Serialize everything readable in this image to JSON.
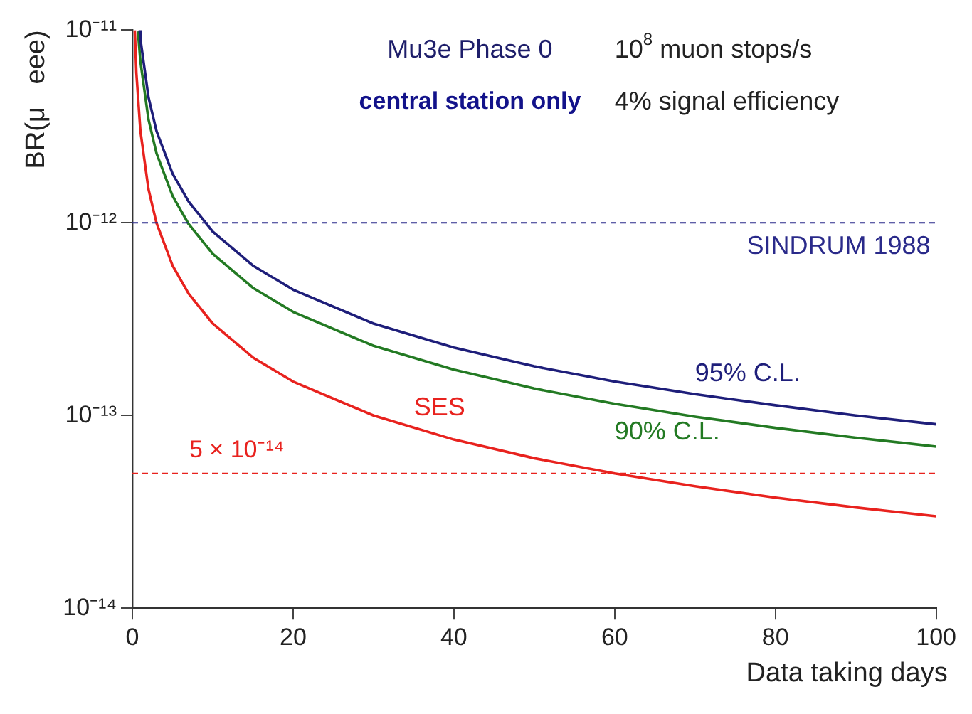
{
  "chart_data": {
    "type": "line",
    "xlabel": "Data taking days",
    "ylabel": "BR(μ   eee)",
    "log": "y",
    "grid": false,
    "legend": false,
    "marker": "none",
    "line_style": "solid",
    "xlim": [
      0,
      100
    ],
    "xticks": [
      0,
      20,
      40,
      60,
      80,
      100
    ],
    "ylim": [
      1e-14,
      1e-11
    ],
    "yticks": [
      {
        "value": 1e-14,
        "label": "10⁻¹⁴"
      },
      {
        "value": 1e-13,
        "label": "10⁻¹³"
      },
      {
        "value": 1e-12,
        "label": "10⁻¹²"
      },
      {
        "value": 1e-11,
        "label": "10⁻¹¹"
      }
    ],
    "series": [
      {
        "name": "95% C.L.",
        "color": "#1e1e7a",
        "x": [
          0.9,
          1,
          2,
          3,
          5,
          7,
          10,
          15,
          20,
          30,
          40,
          50,
          60,
          70,
          80,
          90,
          100
        ],
        "values": [
          1e-11,
          9e-12,
          4.5e-12,
          3e-12,
          1.8e-12,
          1.29e-12,
          9e-13,
          6e-13,
          4.5e-13,
          3e-13,
          2.25e-13,
          1.8e-13,
          1.5e-13,
          1.29e-13,
          1.13e-13,
          1e-13,
          9e-14
        ]
      },
      {
        "name": "90% C.L.",
        "color": "#237a23",
        "x": [
          0.7,
          1,
          2,
          3,
          5,
          7,
          10,
          15,
          20,
          30,
          40,
          50,
          60,
          70,
          80,
          90,
          100
        ],
        "values": [
          9.86e-12,
          6.9e-12,
          3.45e-12,
          2.3e-12,
          1.38e-12,
          9.86e-13,
          6.9e-13,
          4.6e-13,
          3.45e-13,
          2.3e-13,
          1.73e-13,
          1.38e-13,
          1.15e-13,
          9.86e-14,
          8.63e-14,
          7.67e-14,
          6.9e-14
        ]
      },
      {
        "name": "SES",
        "color": "#e8221e",
        "x": [
          0.3,
          0.5,
          1,
          2,
          3,
          5,
          7,
          10,
          15,
          20,
          30,
          40,
          50,
          60,
          70,
          80,
          90,
          100
        ],
        "values": [
          1e-11,
          6e-12,
          3e-12,
          1.5e-12,
          1e-12,
          6e-13,
          4.29e-13,
          3e-13,
          2e-13,
          1.5e-13,
          1e-13,
          7.5e-14,
          6e-14,
          5e-14,
          4.29e-14,
          3.75e-14,
          3.33e-14,
          3e-14
        ]
      }
    ],
    "ref_lines": [
      {
        "axis": "y",
        "value": 1e-12,
        "label": "SINDRUM 1988",
        "color": "#2a2a8a",
        "line_style": "dashed"
      },
      {
        "axis": "y",
        "value": 5e-14,
        "label": "5 × 10⁻¹⁴",
        "color": "#e8221e",
        "line_style": "dashed"
      }
    ],
    "annotations": [
      "Mu3e Phase 0",
      "central station only",
      "10$^{8}$ muon stops/s",
      "4% signal efficiency"
    ]
  }
}
